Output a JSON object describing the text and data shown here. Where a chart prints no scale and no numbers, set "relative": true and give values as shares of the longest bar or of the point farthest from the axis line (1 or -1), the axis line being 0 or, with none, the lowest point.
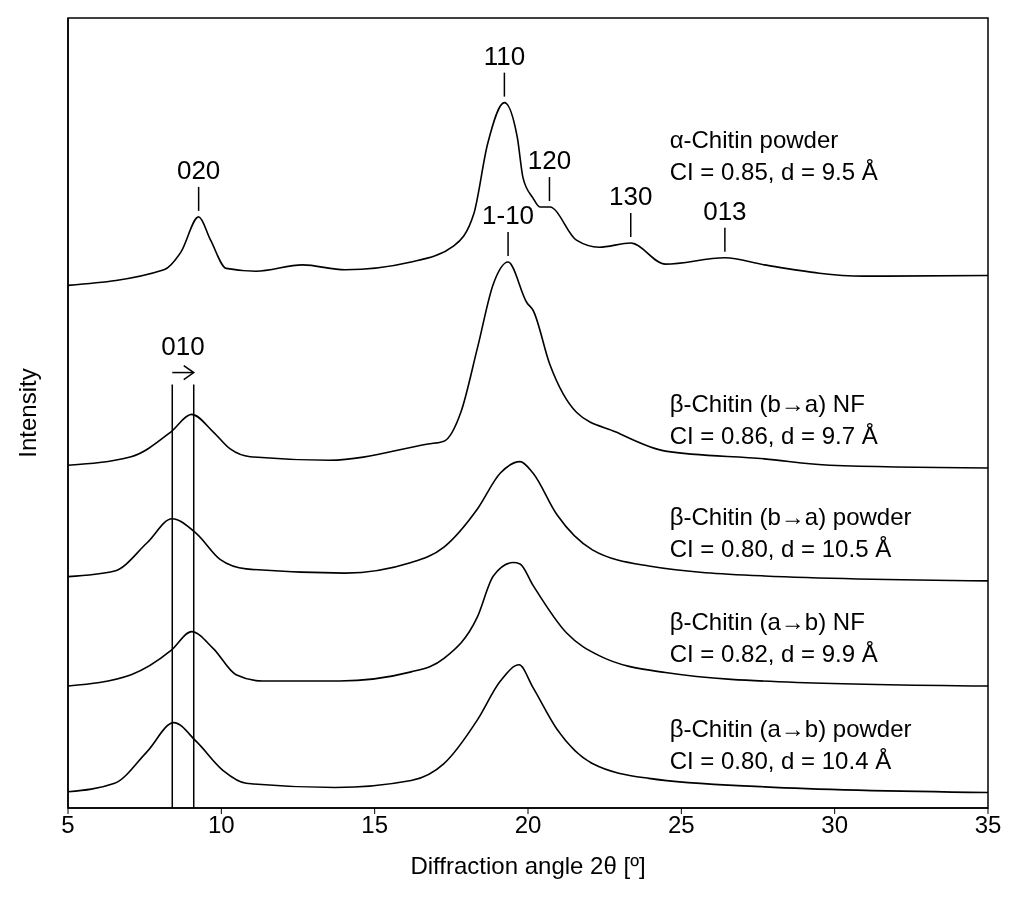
{
  "chart_data": {
    "type": "line",
    "xlabel": "Diffraction angle 2θ [º]",
    "ylabel": "Intensity",
    "relative": true,
    "xlim": [
      5,
      35
    ],
    "xticks": [
      5,
      10,
      15,
      20,
      25,
      30,
      35
    ],
    "marker": "none",
    "line_style": "solid",
    "series": [
      {
        "name": "α-Chitin powder\nCI = 0.85, d = 9.5 Å",
        "color": "#000000",
        "x": [
          5,
          8.13,
          8.68,
          9.26,
          9.65,
          10.16,
          11.13,
          12.65,
          14.03,
          16.19,
          17.58,
          18.23,
          18.68,
          19.23,
          19.65,
          19.84,
          20.16,
          20.39,
          20.71,
          21.58,
          22.32,
          23.35,
          24.48,
          26.42,
          27.71,
          30.94,
          35
        ],
        "values": [
          0.741,
          0.763,
          0.788,
          0.838,
          0.805,
          0.765,
          0.761,
          0.77,
          0.763,
          0.774,
          0.797,
          0.842,
          0.941,
          1.0,
          0.951,
          0.893,
          0.865,
          0.852,
          0.852,
          0.805,
          0.795,
          0.801,
          0.771,
          0.78,
          0.77,
          0.754,
          0.755
        ]
      },
      {
        "name": "β-Chitin (b→a) NF\nCI = 0.86, d = 9.7 Å",
        "color": "#000000",
        "x": [
          5,
          7.06,
          8.35,
          9.03,
          9.74,
          10.29,
          10.94,
          13.52,
          16.74,
          17.26,
          17.81,
          18.35,
          18.87,
          19.35,
          19.97,
          20.16,
          20.71,
          21.58,
          22.87,
          24.48,
          27.71,
          29.84,
          35
        ],
        "values": [
          0.486,
          0.498,
          0.533,
          0.558,
          0.533,
          0.509,
          0.498,
          0.493,
          0.516,
          0.52,
          0.561,
          0.652,
          0.743,
          0.774,
          0.716,
          0.706,
          0.629,
          0.561,
          0.533,
          0.506,
          0.495,
          0.486,
          0.482
        ]
      },
      {
        "name": "β-Chitin (b→a) powder\nCI = 0.80, d = 10.5 Å",
        "color": "#000000",
        "x": [
          5,
          6.52,
          7.58,
          8.39,
          9.19,
          9.97,
          10.81,
          14.03,
          16.19,
          17.26,
          18.35,
          19.1,
          19.74,
          20.16,
          20.94,
          22.1,
          23.94,
          27.71,
          35
        ],
        "values": [
          0.328,
          0.336,
          0.376,
          0.41,
          0.389,
          0.352,
          0.339,
          0.333,
          0.348,
          0.37,
          0.424,
          0.475,
          0.491,
          0.475,
          0.416,
          0.366,
          0.343,
          0.329,
          0.322
        ]
      },
      {
        "name": "β-Chitin (a→b) NF\nCI = 0.82, d = 9.9 Å",
        "color": "#000000",
        "x": [
          5,
          7.06,
          8.35,
          9.03,
          9.74,
          10.48,
          11.35,
          13.84,
          16.19,
          17.26,
          18.35,
          18.87,
          19.52,
          19.74,
          20.16,
          21.26,
          22.32,
          24.48,
          28.77,
          35
        ],
        "values": [
          0.173,
          0.189,
          0.223,
          0.25,
          0.226,
          0.189,
          0.18,
          0.18,
          0.193,
          0.212,
          0.271,
          0.329,
          0.348,
          0.346,
          0.316,
          0.248,
          0.216,
          0.192,
          0.178,
          0.173
        ]
      },
      {
        "name": "β-Chitin (a→b) powder\nCI = 0.80, d = 10.4 Å",
        "color": "#000000",
        "x": [
          5,
          6.52,
          7.58,
          8.45,
          9.19,
          10.06,
          10.81,
          13.71,
          16.19,
          17.26,
          18.35,
          19.1,
          19.71,
          20.16,
          20.94,
          22.1,
          23.94,
          27.71,
          35
        ],
        "values": [
          0.023,
          0.035,
          0.08,
          0.121,
          0.094,
          0.053,
          0.035,
          0.029,
          0.039,
          0.063,
          0.125,
          0.18,
          0.203,
          0.171,
          0.112,
          0.063,
          0.042,
          0.03,
          0.022
        ]
      }
    ],
    "ref_lines": [
      {
        "axis": "x",
        "value": 8.4
      },
      {
        "axis": "x",
        "value": 9.1
      }
    ],
    "annotations": [
      {
        "text": "020",
        "x": 9.26,
        "y": 0.838
      },
      {
        "text": "110",
        "x": 19.23,
        "y": 1.0
      },
      {
        "text": "120",
        "x": 20.7,
        "y": 0.852
      },
      {
        "text": "130",
        "x": 23.35,
        "y": 0.801
      },
      {
        "text": "013",
        "x": 26.42,
        "y": 0.78
      },
      {
        "text": "1-10",
        "x": 19.35,
        "y": 0.774
      },
      "010"
    ]
  }
}
